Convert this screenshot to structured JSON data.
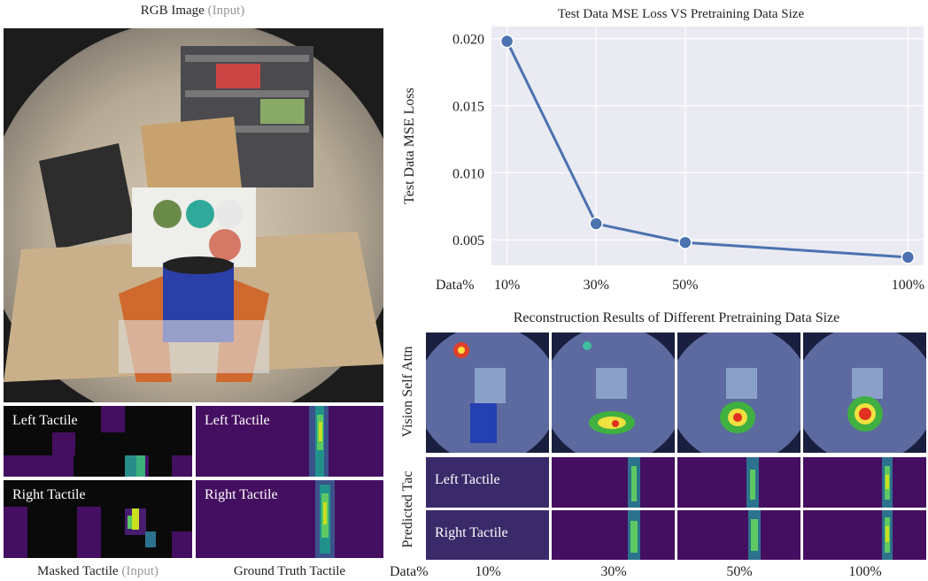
{
  "left": {
    "title": "RGB Image",
    "title_note": "(Input)",
    "masked_caption": "Masked Tactile",
    "masked_note": "(Input)",
    "ground_truth_caption": "Ground Truth Tactile",
    "left_tactile": "Left Tactile",
    "right_tactile": "Right Tactile"
  },
  "recon": {
    "title": "Reconstruction Results of Different Pretraining Data Size",
    "row_vision": "Vision Self Attn",
    "row_pred": "Predicted Tac",
    "left_tactile": "Left Tactile",
    "right_tactile": "Right Tactile",
    "data_label": "Data%",
    "columns": [
      "10%",
      "30%",
      "50%",
      "100%"
    ]
  },
  "chart_data": {
    "type": "line",
    "title": "Test Data MSE Loss VS Pretraining Data Size",
    "ylabel": "Test Data MSE Loss",
    "xlabel_prefix": "Data%",
    "categories": [
      "10%",
      "30%",
      "50%",
      "100%"
    ],
    "x": [
      10,
      30,
      50,
      100
    ],
    "series": [
      {
        "values": [
          0.0198,
          0.0062,
          0.0048,
          0.0037
        ],
        "color": "#4c72b0"
      }
    ],
    "ylim": [
      0.0031,
      0.0209
    ],
    "xlim": [
      6.5,
      103.5
    ],
    "yticks": [
      "0.020",
      "0.015",
      "0.010",
      "0.005"
    ],
    "ytick_values": [
      0.02,
      0.015,
      0.01,
      0.005
    ],
    "grid": true,
    "background": "#eaeaf2"
  }
}
